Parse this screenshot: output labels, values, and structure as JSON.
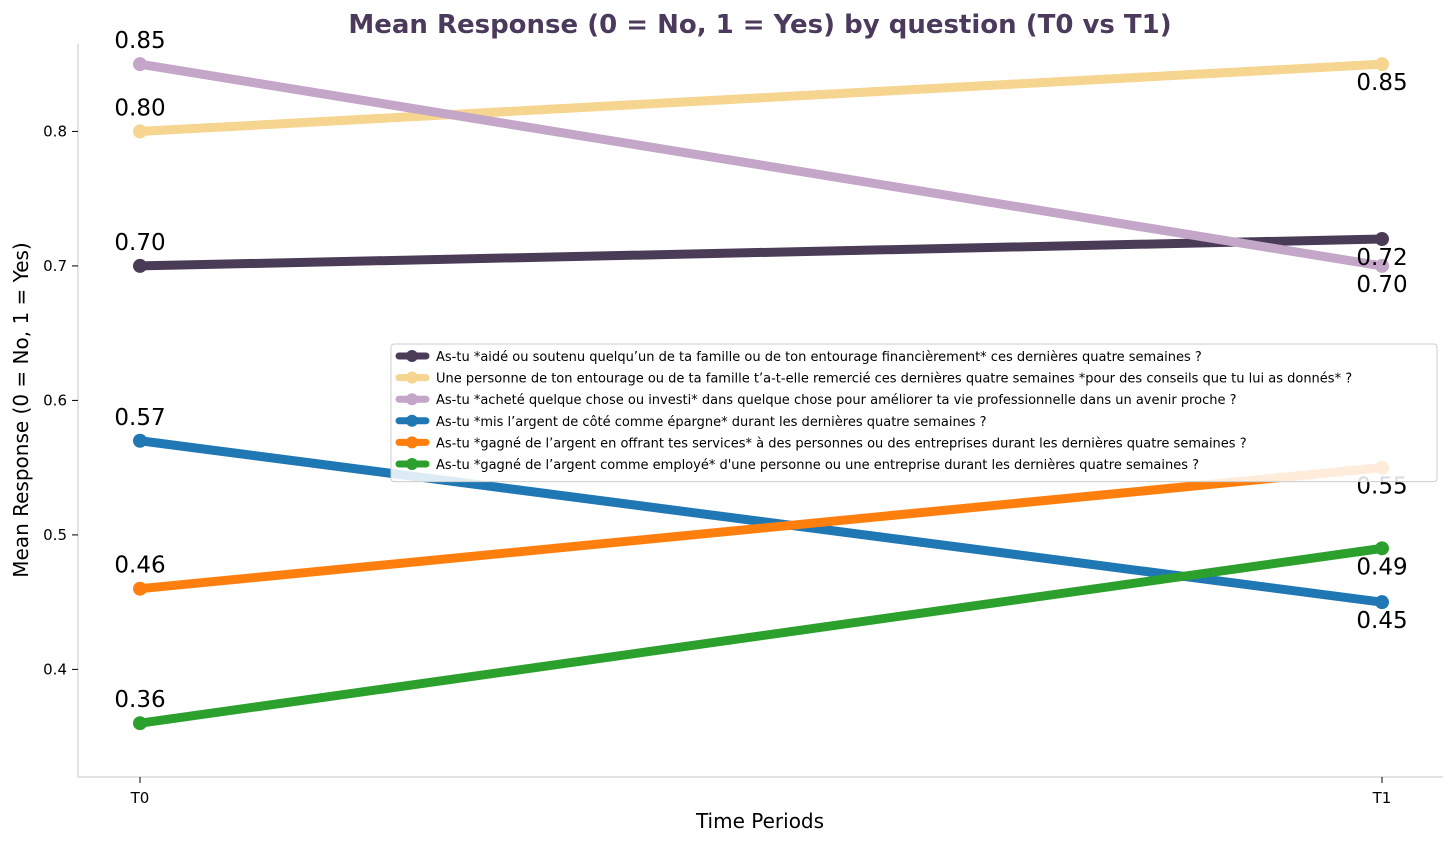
{
  "chart_data": {
    "type": "line",
    "title": "Mean Response (0 = No, 1 = Yes) by question (T0 vs T1)",
    "xlabel": "Time Periods",
    "ylabel": "Mean Response (0 = No, 1 = Yes)",
    "x": [
      "T0",
      "T1"
    ],
    "ylim": [
      0.32,
      0.865
    ],
    "yticks": [
      0.4,
      0.5,
      0.6,
      0.7,
      0.8
    ],
    "ytick_labels": [
      "0.4",
      "0.5",
      "0.6",
      "0.7",
      "0.8"
    ],
    "grid": false,
    "legend_position": "center-right",
    "title_color": "#4b3a5c",
    "series": [
      {
        "name": "As-tu *aidé ou soutenu quelqu’un de ta famille ou de ton entourage financièrement* ces dernières quatre semaines ?",
        "values": [
          0.7,
          0.72
        ],
        "labels": [
          "0.70",
          "0.72"
        ],
        "color": "#4a3b57"
      },
      {
        "name": "Une personne de ton entourage ou de ta famille t’a-t-elle remercié ces dernières quatre semaines *pour des conseils que tu lui as donnés* ?",
        "values": [
          0.8,
          0.85
        ],
        "labels": [
          "0.80",
          "0.85"
        ],
        "color": "#f5d58f"
      },
      {
        "name": "As-tu *acheté quelque chose ou investi* dans quelque chose pour améliorer ta vie professionnelle dans un avenir proche ?",
        "values": [
          0.85,
          0.7
        ],
        "labels": [
          "0.85",
          "0.70"
        ],
        "color": "#c4a6c8"
      },
      {
        "name": "As-tu *mis l’argent de côté comme épargne* durant les dernières quatre semaines ?",
        "values": [
          0.57,
          0.45
        ],
        "labels": [
          "0.57",
          "0.45"
        ],
        "color": "#1f77b4"
      },
      {
        "name": "As-tu *gagné de l’argent en offrant tes services* à des personnes ou des entreprises durant les dernières quatre semaines ?",
        "values": [
          0.46,
          0.55
        ],
        "labels": [
          "0.46",
          "0.55"
        ],
        "color": "#ff7f0e"
      },
      {
        "name": "As-tu *gagné de l’argent comme employé* d'une personne ou une entreprise durant les dernières quatre semaines ?",
        "values": [
          0.36,
          0.49
        ],
        "labels": [
          "0.36",
          "0.49"
        ],
        "color": "#2ca02c"
      }
    ]
  }
}
